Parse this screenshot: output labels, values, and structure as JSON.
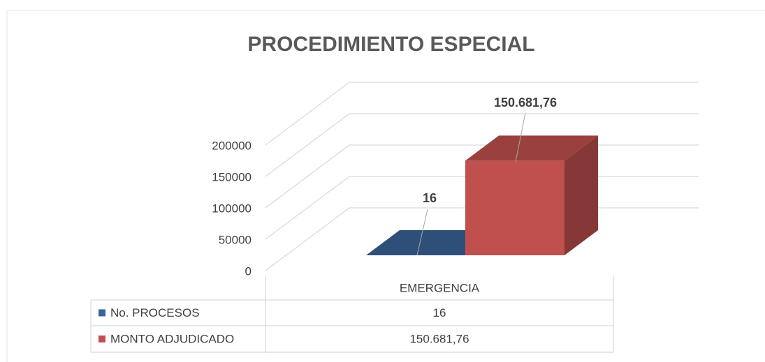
{
  "chart_data": {
    "type": "bar3d",
    "title": "PROCEDIMIENTO ESPECIAL",
    "categories": [
      "EMERGENCIA"
    ],
    "series": [
      {
        "name": "No. PROCESOS",
        "color": "#3a6496",
        "values": [
          16
        ],
        "value_labels": [
          "16"
        ]
      },
      {
        "name": "MONTO ADJUDICADO",
        "color": "#c0504d",
        "values": [
          150681.76
        ],
        "value_labels": [
          "150.681,76"
        ]
      }
    ],
    "ylim": [
      0,
      200000
    ],
    "yticks": [
      0,
      50000,
      100000,
      150000,
      200000
    ],
    "grid": true
  }
}
